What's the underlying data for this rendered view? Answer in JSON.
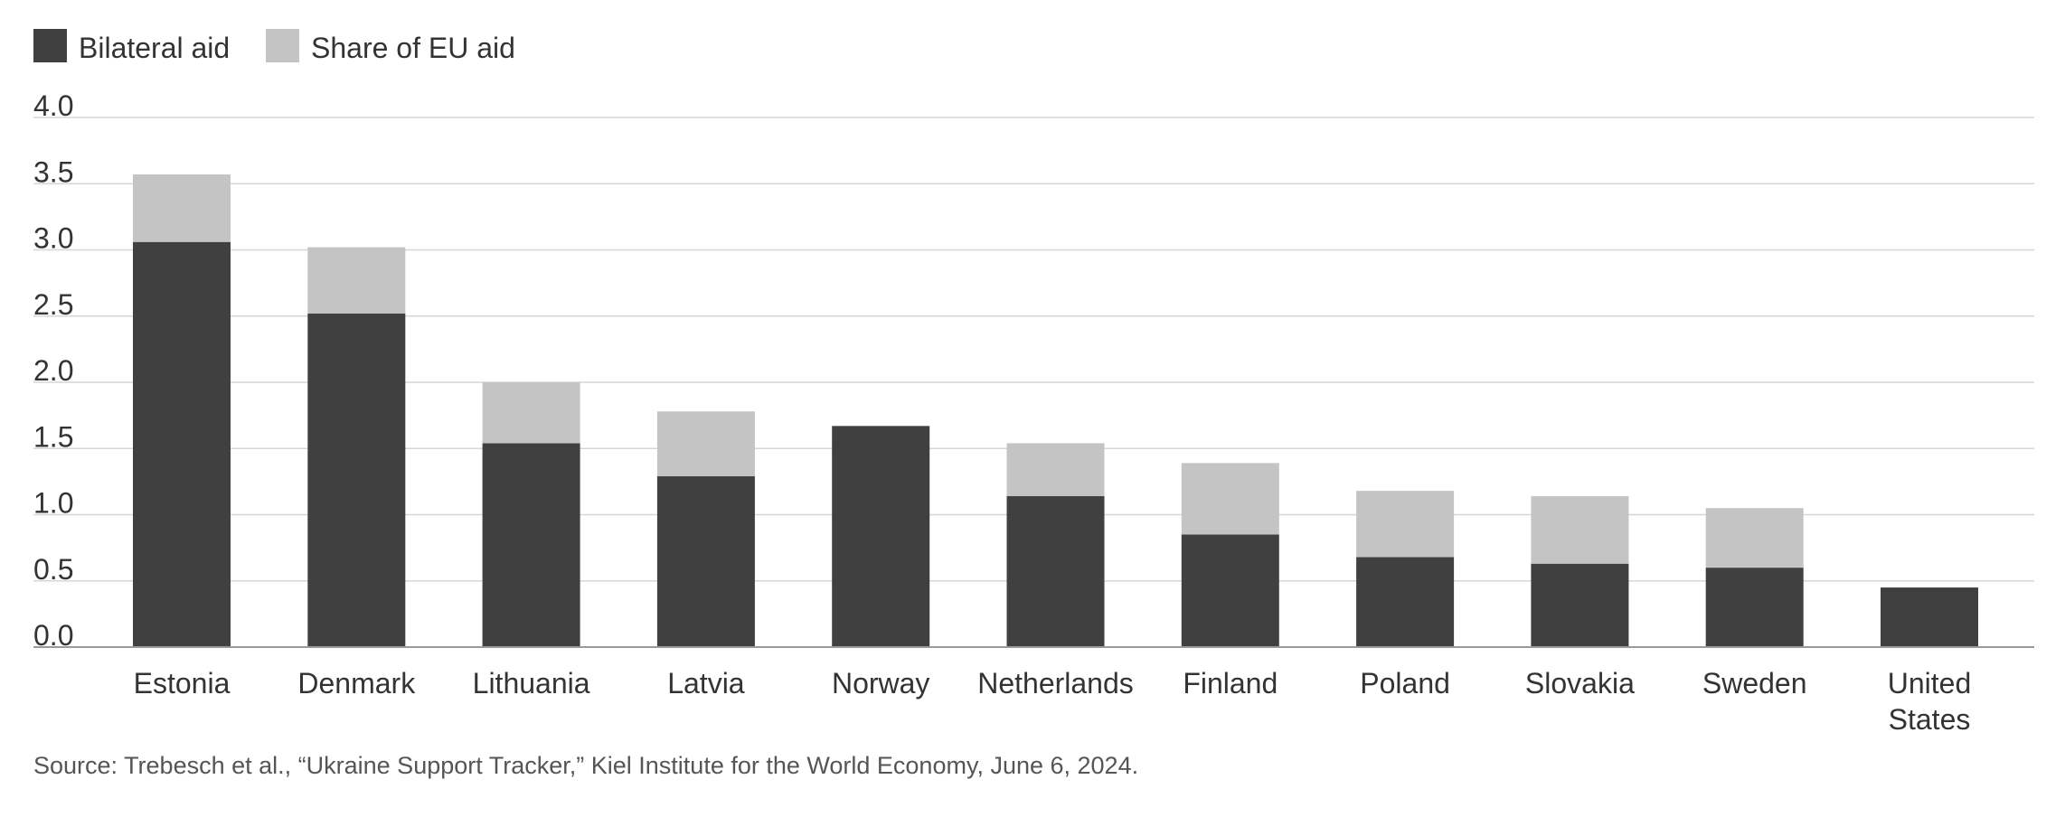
{
  "chart_data": {
    "type": "bar",
    "stacked": true,
    "categories": [
      "Estonia",
      "Denmark",
      "Lithuania",
      "Latvia",
      "Norway",
      "Netherlands",
      "Finland",
      "Poland",
      "Slovakia",
      "Sweden",
      "United States"
    ],
    "category_lines": [
      [
        "Estonia"
      ],
      [
        "Denmark"
      ],
      [
        "Lithuania"
      ],
      [
        "Latvia"
      ],
      [
        "Norway"
      ],
      [
        "Netherlands"
      ],
      [
        "Finland"
      ],
      [
        "Poland"
      ],
      [
        "Slovakia"
      ],
      [
        "Sweden"
      ],
      [
        "United",
        "States"
      ]
    ],
    "series": [
      {
        "name": "Bilateral aid",
        "color": "#404040",
        "values": [
          3.06,
          2.52,
          1.54,
          1.29,
          1.67,
          1.14,
          0.85,
          0.68,
          0.63,
          0.6,
          0.45
        ]
      },
      {
        "name": "Share of EU aid",
        "color": "#c4c4c4",
        "values": [
          0.51,
          0.5,
          0.46,
          0.49,
          0.0,
          0.4,
          0.54,
          0.5,
          0.51,
          0.45,
          0.0
        ]
      }
    ],
    "ylim": [
      0,
      4
    ],
    "yticks": [
      "0.0",
      "0.5",
      "1.0",
      "1.5",
      "2.0",
      "2.5",
      "3.0",
      "3.5",
      "4.0"
    ],
    "grid": true,
    "legend_position": "top-left"
  },
  "source": "Source: Trebesch et al., “Ukraine Support Tracker,” Kiel Institute for the World Economy, June 6, 2024."
}
